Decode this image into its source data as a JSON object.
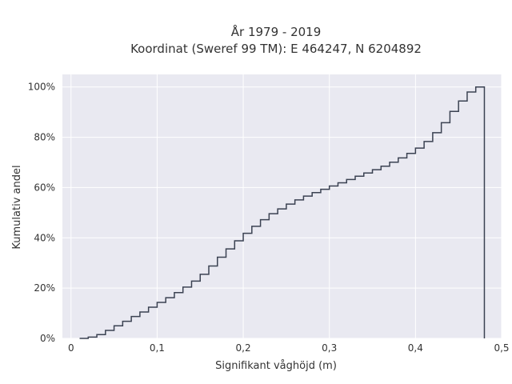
{
  "chart_data": {
    "type": "line",
    "subtype": "empirical-cdf-step",
    "title_lines": [
      "År 1979 - 2019",
      "Koordinat (Sweref 99 TM): E 464247, N 6204892"
    ],
    "xlabel": "Signifikant våghöjd (m)",
    "ylabel": "Kumulativ andel",
    "xlim": [
      -0.01,
      0.5
    ],
    "ylim": [
      0,
      1.05
    ],
    "x_ticks": [
      0,
      0.1,
      0.2,
      0.3,
      0.4,
      0.5
    ],
    "x_tick_labels": [
      "0",
      "0,1",
      "0,2",
      "0,3",
      "0,4",
      "0,5"
    ],
    "y_ticks": [
      0,
      0.2,
      0.4,
      0.6,
      0.8,
      1.0
    ],
    "y_tick_labels": [
      "0%",
      "20%",
      "40%",
      "60%",
      "80%",
      "100%"
    ],
    "grid": true,
    "background": "#e9e9f1",
    "line_color": "#3b4252",
    "x": [
      0.01,
      0.02,
      0.03,
      0.04,
      0.05,
      0.06,
      0.07,
      0.08,
      0.09,
      0.1,
      0.11,
      0.12,
      0.13,
      0.14,
      0.15,
      0.16,
      0.17,
      0.18,
      0.19,
      0.2,
      0.21,
      0.22,
      0.23,
      0.24,
      0.25,
      0.26,
      0.27,
      0.28,
      0.29,
      0.3,
      0.31,
      0.32,
      0.33,
      0.34,
      0.35,
      0.36,
      0.37,
      0.38,
      0.39,
      0.4,
      0.41,
      0.42,
      0.43,
      0.44,
      0.45,
      0.46,
      0.47,
      0.48
    ],
    "y": [
      0.0,
      0.005,
      0.015,
      0.032,
      0.05,
      0.068,
      0.087,
      0.105,
      0.124,
      0.143,
      0.162,
      0.182,
      0.204,
      0.228,
      0.255,
      0.288,
      0.323,
      0.356,
      0.388,
      0.418,
      0.446,
      0.472,
      0.496,
      0.515,
      0.534,
      0.551,
      0.566,
      0.58,
      0.593,
      0.606,
      0.619,
      0.632,
      0.645,
      0.658,
      0.671,
      0.685,
      0.701,
      0.718,
      0.736,
      0.757,
      0.783,
      0.818,
      0.858,
      0.903,
      0.944,
      0.98,
      1.0,
      1.0
    ],
    "drop_at_x": 0.48
  }
}
